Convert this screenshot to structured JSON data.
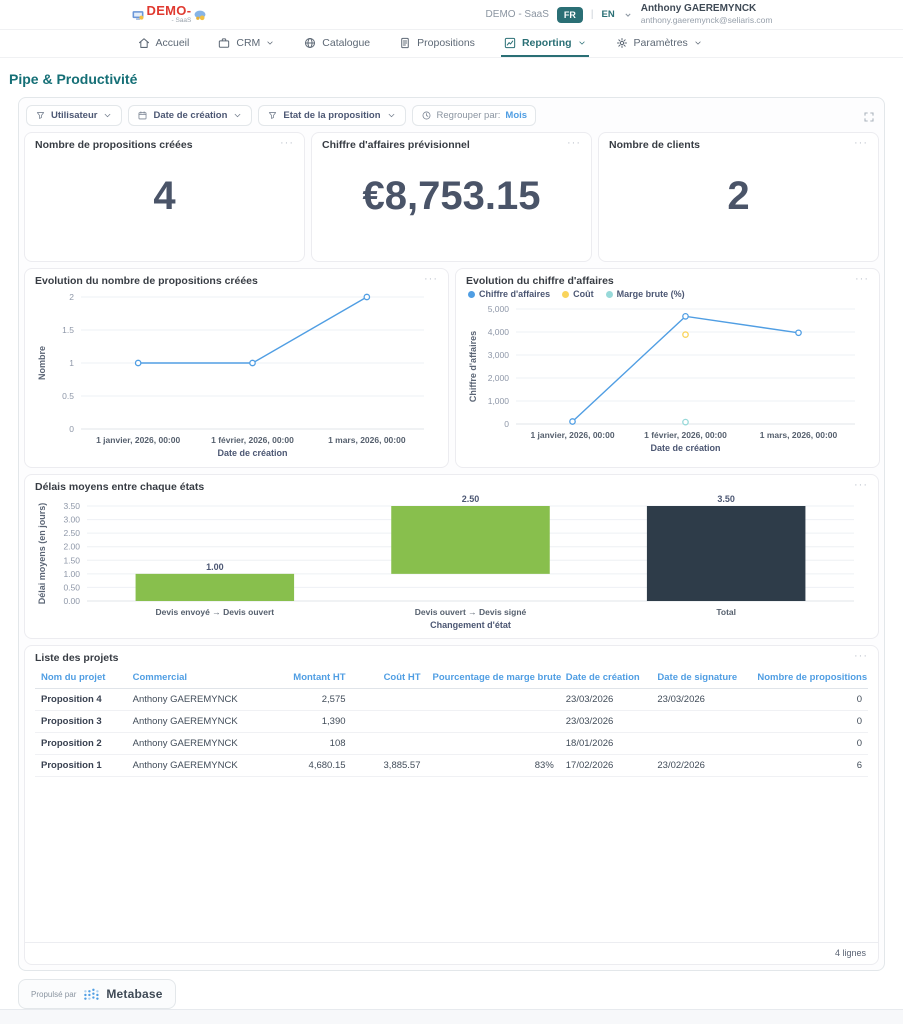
{
  "header": {
    "logo": {
      "text": "DEMO-",
      "sub": "- SaaS"
    },
    "right": {
      "app_label": "DEMO - SaaS",
      "lang_fr": "FR",
      "divider": "|",
      "lang_en": "EN",
      "user_name": "Anthony GAEREMYNCK",
      "user_email": "anthony.gaeremynck@seliaris.com"
    }
  },
  "nav": {
    "items": [
      {
        "label": "Accueil",
        "icon": "home",
        "caret": false,
        "active": false
      },
      {
        "label": "CRM",
        "icon": "briefcase",
        "caret": true,
        "active": false
      },
      {
        "label": "Catalogue",
        "icon": "globe",
        "caret": false,
        "active": false
      },
      {
        "label": "Propositions",
        "icon": "document",
        "caret": false,
        "active": false
      },
      {
        "label": "Reporting",
        "icon": "chart",
        "caret": true,
        "active": true
      },
      {
        "label": "Paramètres",
        "icon": "gear",
        "caret": true,
        "active": false
      }
    ]
  },
  "page": {
    "title": "Pipe & Productivité"
  },
  "filters": {
    "chips": [
      {
        "icon": "funnel",
        "label": "Utilisateur",
        "caret": true
      },
      {
        "icon": "calendar",
        "label": "Date de création",
        "caret": true
      },
      {
        "icon": "funnel",
        "label": "Etat de la proposition",
        "caret": true
      },
      {
        "icon": "clock",
        "label": "Regrouper par:",
        "value": "Mois",
        "caret": false
      }
    ]
  },
  "ui": {
    "card_menu": "···"
  },
  "colors": {
    "accent_teal": "#2a6f75",
    "metabase_blue": "#509EE3",
    "green": "#88BF4D",
    "yellow": "#F9D45C",
    "cyan": "#98D9D9",
    "dark_bar": "#2e3c49"
  },
  "kpis": [
    {
      "title": "Nombre de propositions créées",
      "value": "4"
    },
    {
      "title": "Chiffre d'affaires prévisionnel",
      "value": "€8,753.15"
    },
    {
      "title": "Nombre de clients",
      "value": "2"
    }
  ],
  "chart_data": [
    {
      "type": "line",
      "title": "Evolution du nombre de propositions créées",
      "x": [
        "1 janvier, 2026, 00:00",
        "1 février, 2026, 00:00",
        "1 mars, 2026, 00:00"
      ],
      "series": [
        {
          "name": "Nombre",
          "color": "#509EE3",
          "line": true,
          "values": [
            1,
            1,
            2
          ]
        }
      ],
      "xlabel": "Date de création",
      "ylabel": "Nombre",
      "ylim": [
        0,
        2
      ],
      "grid": true,
      "legend": false,
      "yticks": [
        {
          "v": 0,
          "label": "0"
        },
        {
          "v": 0.5,
          "label": "0.5"
        },
        {
          "v": 1,
          "label": "1"
        },
        {
          "v": 1.5,
          "label": "1.5"
        },
        {
          "v": 2,
          "label": "2"
        }
      ]
    },
    {
      "type": "line",
      "title": "Evolution du chiffre d'affaires",
      "x": [
        "1 janvier, 2026, 00:00",
        "1 février, 2026, 00:00",
        "1 mars, 2026, 00:00"
      ],
      "series": [
        {
          "name": "Chiffre d'affaires",
          "color": "#509EE3",
          "line": true,
          "values": [
            108,
            4680.15,
            3965
          ]
        },
        {
          "name": "Coût",
          "color": "#F9D45C",
          "line": false,
          "values": [
            null,
            3885.57,
            null
          ]
        },
        {
          "name": "Marge brute (%)",
          "color": "#98D9D9",
          "line": false,
          "values": [
            null,
            83,
            null
          ]
        }
      ],
      "xlabel": "Date de création",
      "ylabel": "Chiffre d'affaires",
      "ylim": [
        0,
        5000
      ],
      "grid": true,
      "legend": true,
      "legend_position": "top-left",
      "yticks": [
        {
          "v": 0,
          "label": "0"
        },
        {
          "v": 1000,
          "label": "1,000"
        },
        {
          "v": 2000,
          "label": "2,000"
        },
        {
          "v": 3000,
          "label": "3,000"
        },
        {
          "v": 4000,
          "label": "4,000"
        },
        {
          "v": 5000,
          "label": "5,000"
        }
      ]
    },
    {
      "type": "waterfall",
      "title": "Délais moyens entre chaque états",
      "categories": [
        "Devis envoyé → Devis ouvert",
        "Devis ouvert → Devis signé",
        "Total"
      ],
      "bars": [
        {
          "from": 0,
          "to": 1,
          "label": "1.00",
          "color": "#88BF4D"
        },
        {
          "from": 1,
          "to": 3.5,
          "label": "2.50",
          "color": "#88BF4D"
        },
        {
          "from": 0,
          "to": 3.5,
          "label": "3.50",
          "color": "#2e3c49"
        }
      ],
      "xlabel": "Changement d'état",
      "ylabel": "Délai moyens (en jours)",
      "ylim": [
        0,
        3.5
      ],
      "grid": true,
      "yticks": [
        {
          "v": 0,
          "label": "0.00"
        },
        {
          "v": 0.5,
          "label": "0.50"
        },
        {
          "v": 1,
          "label": "1.00"
        },
        {
          "v": 1.5,
          "label": "1.50"
        },
        {
          "v": 2,
          "label": "2.00"
        },
        {
          "v": 2.5,
          "label": "2.50"
        },
        {
          "v": 3,
          "label": "3.00"
        },
        {
          "v": 3.5,
          "label": "3.50"
        }
      ]
    }
  ],
  "table": {
    "title": "Liste des projets",
    "columns": [
      {
        "label": "Nom du projet",
        "align": "left",
        "width": "11%"
      },
      {
        "label": "Commercial",
        "align": "left",
        "width": "17%"
      },
      {
        "label": "Montant HT",
        "align": "right",
        "width": "10%"
      },
      {
        "label": "Coût HT",
        "align": "right",
        "width": "9%"
      },
      {
        "label": "Pourcentage de marge brute",
        "align": "right",
        "width": "16%"
      },
      {
        "label": "Date de création",
        "align": "left",
        "width": "11%"
      },
      {
        "label": "Date de signature",
        "align": "left",
        "width": "12%"
      },
      {
        "label": "Nombre de propositions",
        "align": "right",
        "width": "14%"
      }
    ],
    "rows": [
      [
        "Proposition 4",
        "Anthony GAEREMYNCK",
        "2,575",
        "",
        "",
        "23/03/2026",
        "23/03/2026",
        "0"
      ],
      [
        "Proposition 3",
        "Anthony GAEREMYNCK",
        "1,390",
        "",
        "",
        "23/03/2026",
        "",
        "0"
      ],
      [
        "Proposition 2",
        "Anthony GAEREMYNCK",
        "108",
        "",
        "",
        "18/01/2026",
        "",
        "0"
      ],
      [
        "Proposition 1",
        "Anthony GAEREMYNCK",
        "4,680.15",
        "3,885.57",
        "83%",
        "17/02/2026",
        "23/02/2026",
        "6"
      ]
    ],
    "footer": "4 lignes"
  },
  "footer_badge": {
    "powered_by": "Propulsé par",
    "brand": "Metabase"
  }
}
